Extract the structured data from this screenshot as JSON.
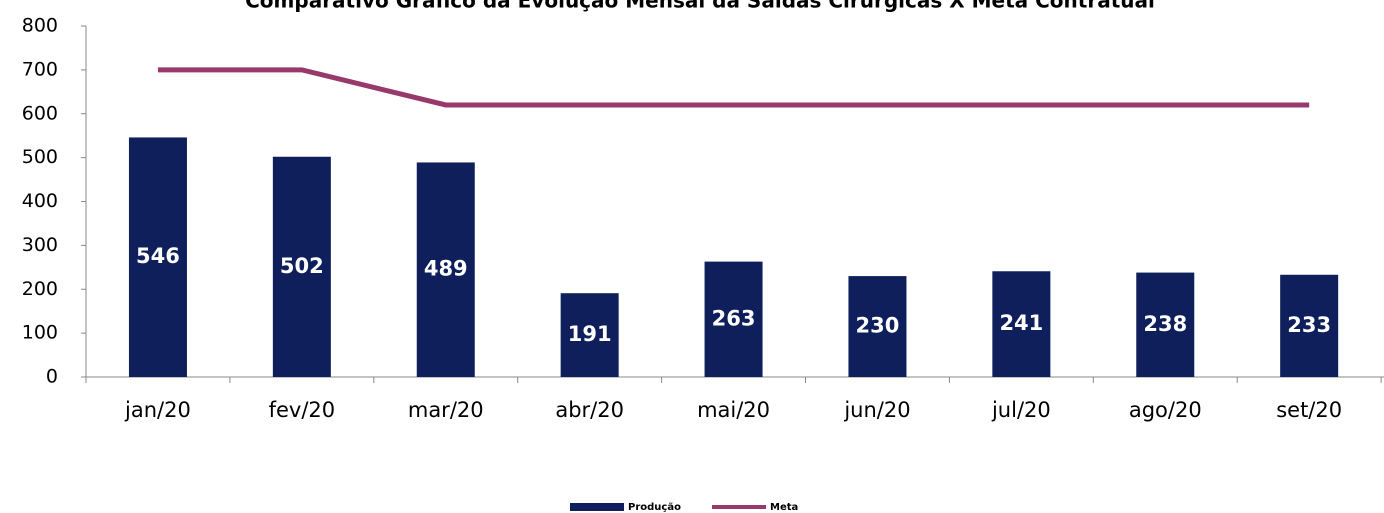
{
  "chart_data": {
    "type": "bar",
    "title": "Comparativo Gráfico da Evolução Mensal da Saídas Cirurgicas X Meta Contratual",
    "categories": [
      "jan/20",
      "fev/20",
      "mar/20",
      "abr/20",
      "mai/20",
      "jun/20",
      "jul/20",
      "ago/20",
      "set/20"
    ],
    "series": [
      {
        "name": "Produção",
        "type": "bar",
        "color": "#0e1f5b",
        "values": [
          546,
          502,
          489,
          191,
          263,
          230,
          241,
          238,
          233
        ]
      },
      {
        "name": "Meta",
        "type": "line",
        "color": "#973a6b",
        "values": [
          700,
          700,
          620,
          620,
          620,
          620,
          620,
          620,
          620
        ]
      }
    ],
    "ylim": [
      0,
      800
    ],
    "yticks": [
      0,
      100,
      200,
      300,
      400,
      500,
      600,
      700,
      800
    ],
    "legend": "bottom"
  }
}
